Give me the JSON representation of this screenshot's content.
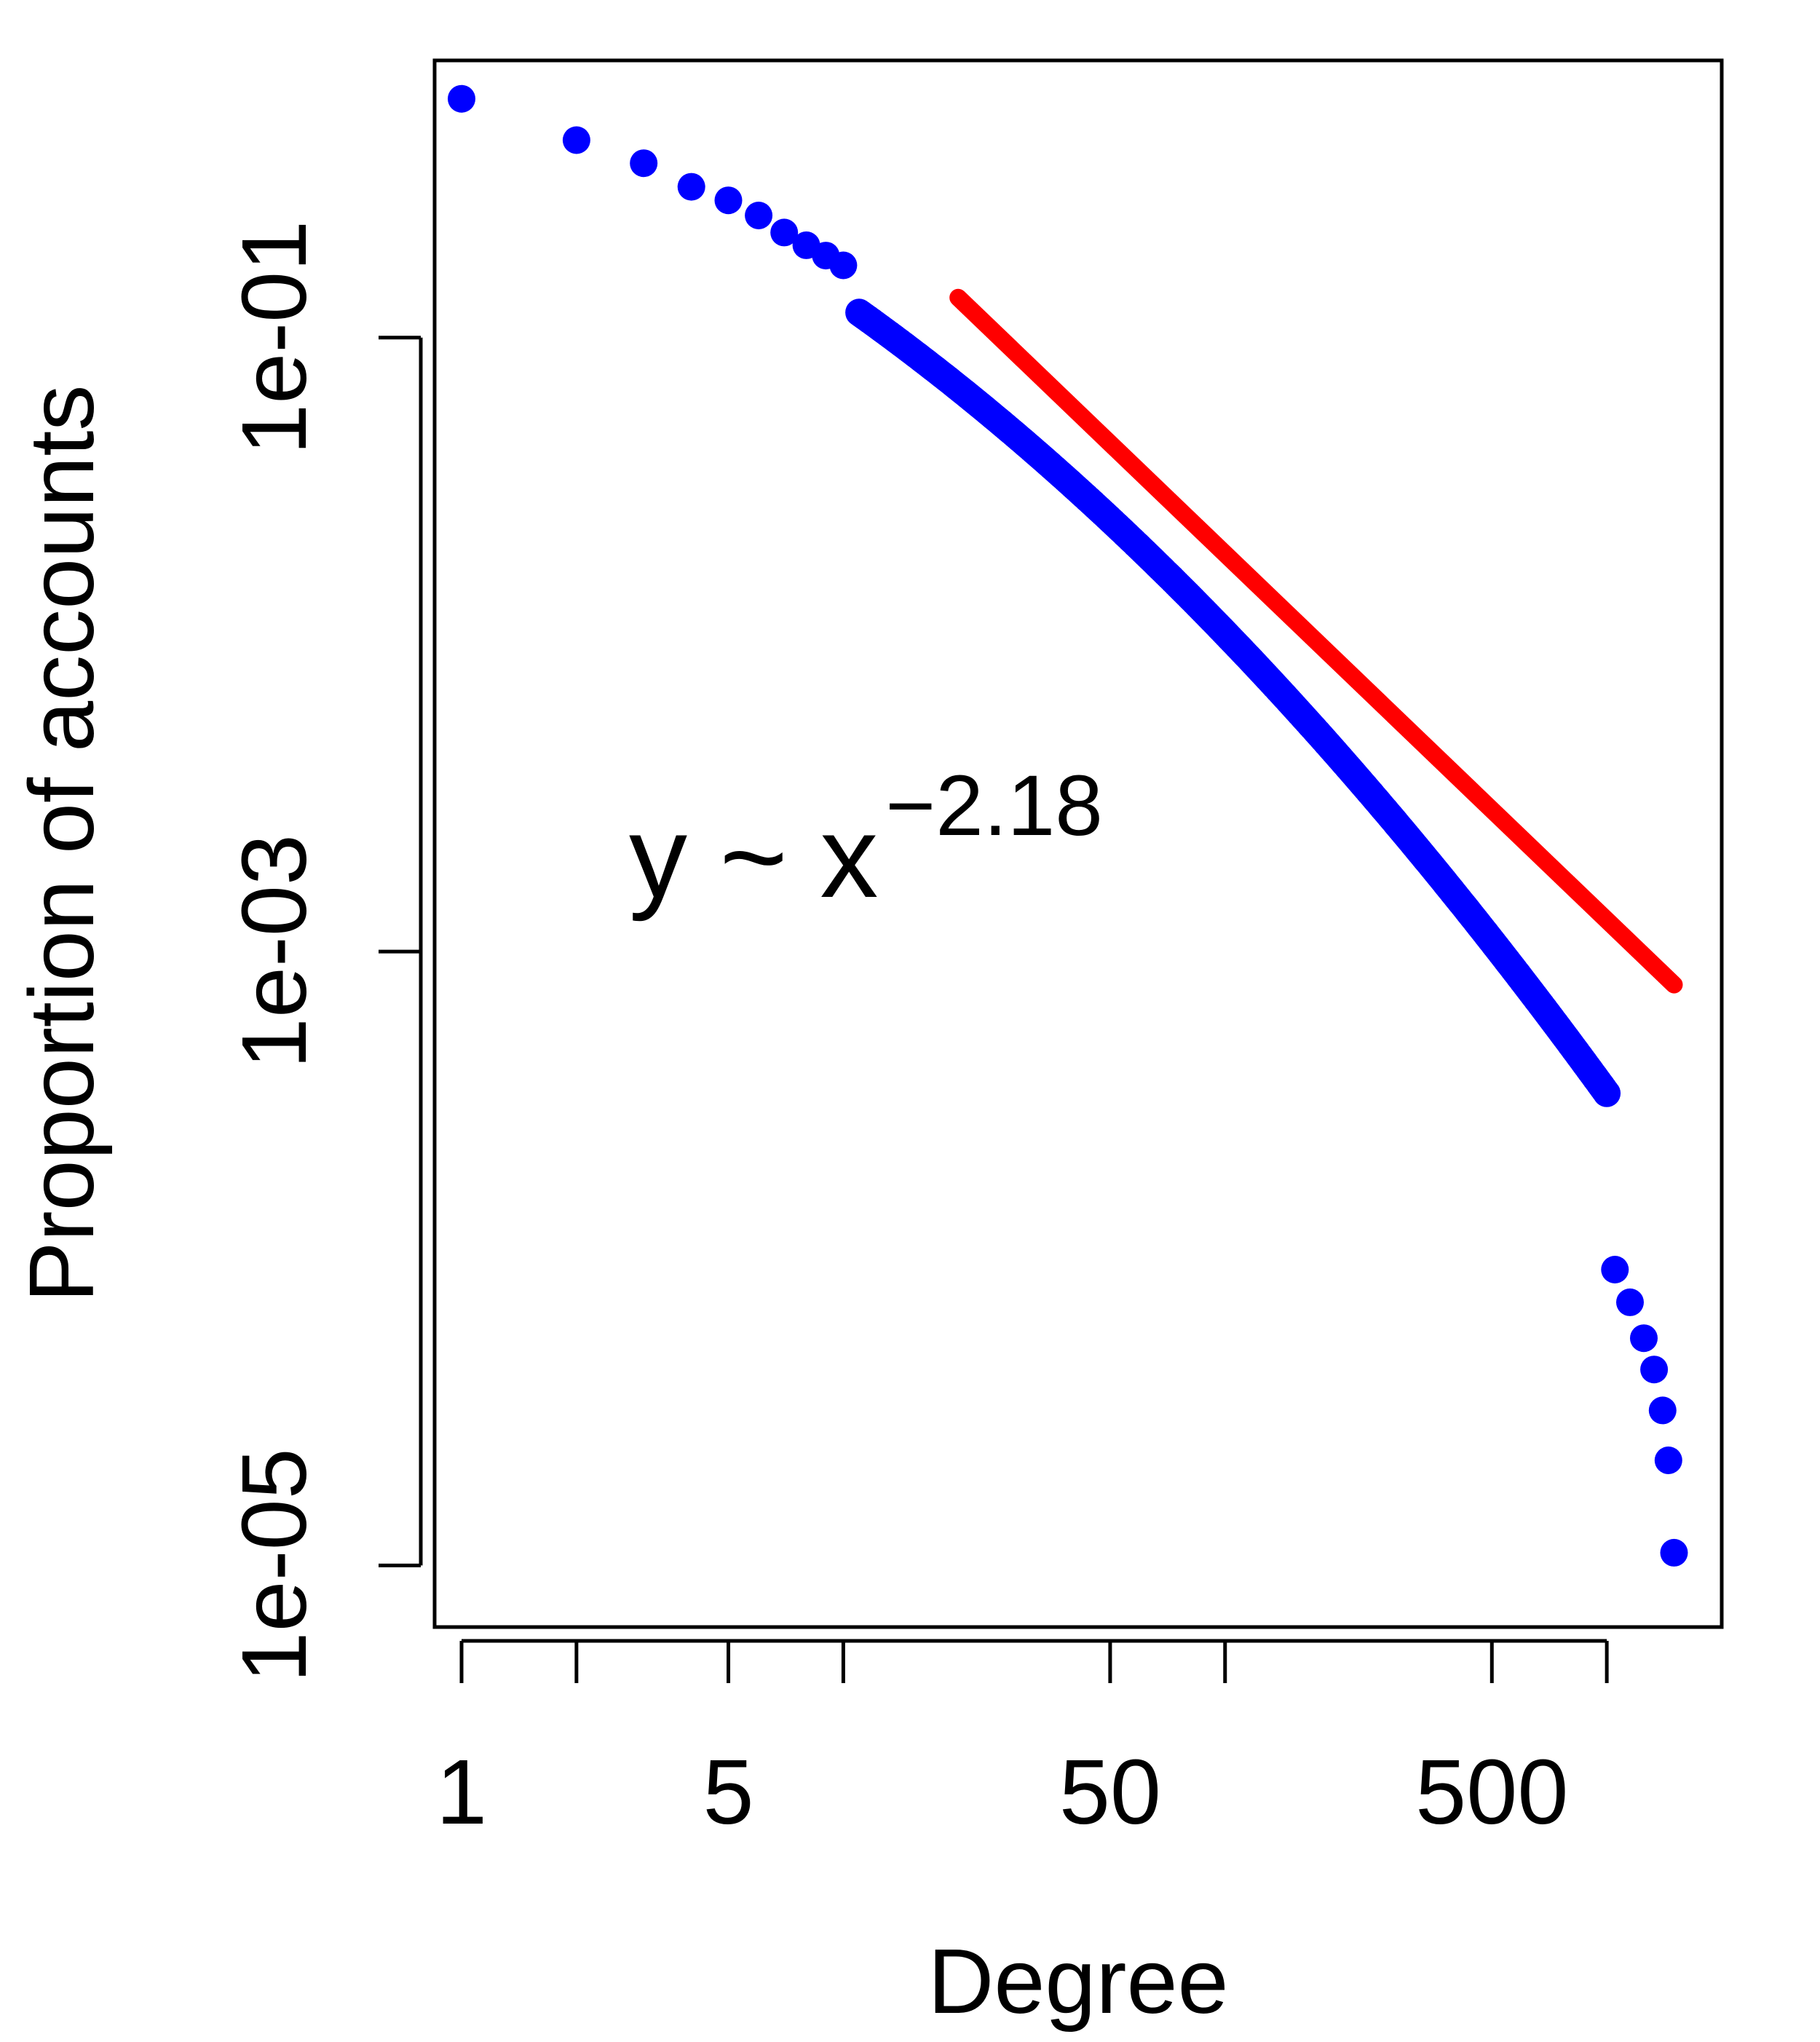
{
  "chart_data": {
    "type": "scatter",
    "title": "",
    "xlabel": "Degree",
    "ylabel": "Proportion of accounts",
    "x_scale": "log",
    "y_scale": "log",
    "xlim": [
      0.85,
      2000
    ],
    "ylim": [
      6.3e-06,
      0.8
    ],
    "x_ticks": [
      1,
      2,
      5,
      10,
      50,
      100,
      500,
      1000
    ],
    "x_tick_labels": [
      "1",
      "",
      "5",
      "",
      "50",
      "",
      "500",
      ""
    ],
    "y_ticks": [
      0.1,
      0.001,
      1e-05
    ],
    "y_tick_labels": [
      "1e-01",
      "1e-03",
      "1e-05"
    ],
    "grid": false,
    "legend": "none",
    "annotation": {
      "base": "y ~ x",
      "exponent": "−2.18"
    },
    "colors": {
      "points": "#0000ff",
      "fit_line": "#ff0000",
      "axes": "#000000"
    },
    "series": [
      {
        "kind": "points",
        "curve": {
          "x_min": 1,
          "x_max": 1500,
          "count": 420,
          "y_at_1": 0.6,
          "log_slope_start": -0.45,
          "log_slope_quadratic": -0.21
        },
        "x": [
          1,
          2,
          3,
          4,
          5,
          6,
          7,
          8,
          9,
          10
        ],
        "y": [
          0.6,
          0.44,
          0.37,
          0.31,
          0.28,
          0.25,
          0.22,
          0.2,
          0.185,
          0.172
        ],
        "tail_x": [
          1050,
          1150,
          1250,
          1330,
          1400,
          1450,
          1500
        ],
        "tail_y": [
          9.2e-05,
          7.2e-05,
          5.5e-05,
          4.35e-05,
          3.2e-05,
          2.2e-05,
          1.1e-05
        ]
      },
      {
        "kind": "line",
        "x": [
          20,
          1500
        ],
        "y": [
          0.135,
          0.00078
        ]
      }
    ]
  }
}
